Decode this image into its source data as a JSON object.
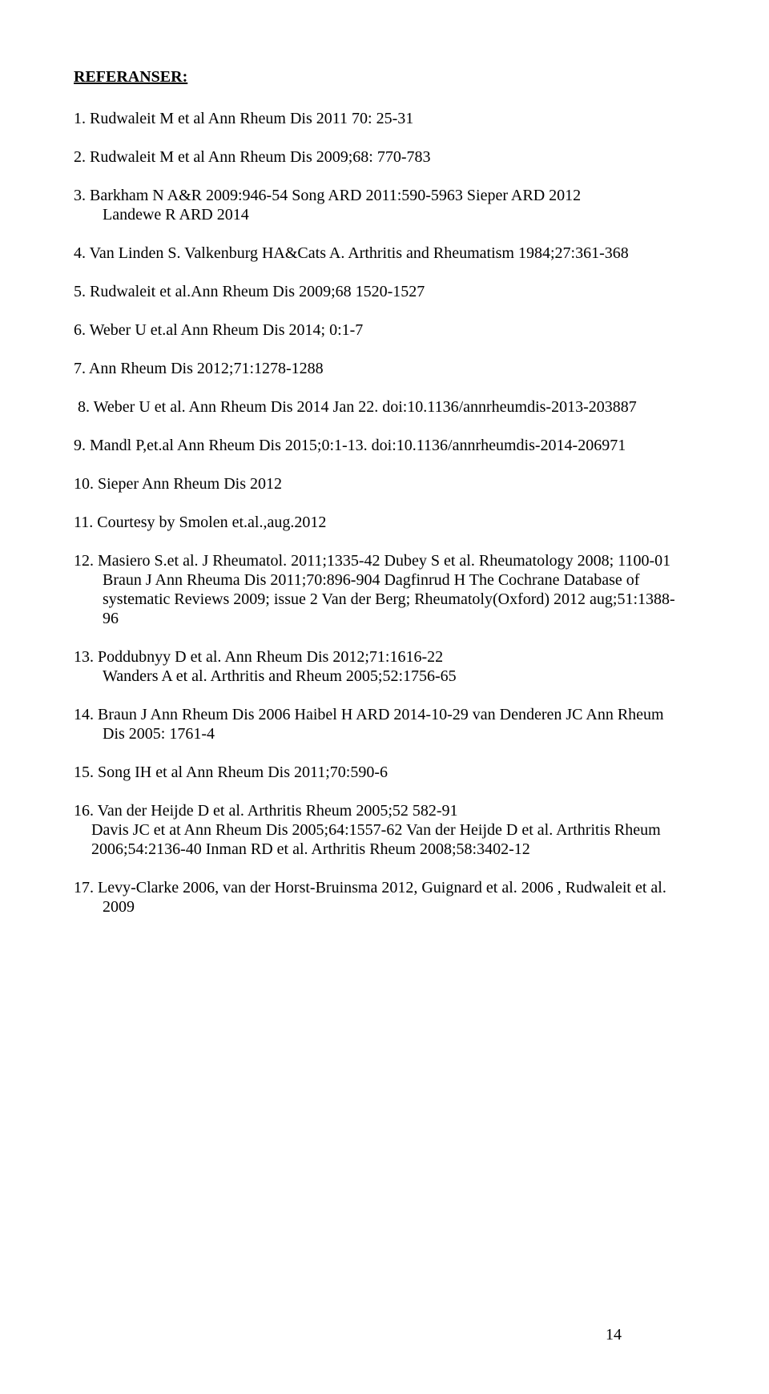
{
  "heading": "REFERANSER:",
  "refs": {
    "r1": "1. Rudwaleit M et al  Ann Rheum Dis 2011 70: 25-31",
    "r2": "2. Rudwaleit M et al Ann Rheum Dis 2009;68: 770-783",
    "r3a": "3. Barkham N A&R 2009:946-54   Song ARD 2011:590-5963  Sieper ARD 2012",
    "r3b": "Landewe R ARD 2014",
    "r4": "4. Van Linden S. Valkenburg HA&Cats A. Arthritis and Rheumatism 1984;27:361-368",
    "r5": "5. Rudwaleit et al.Ann Rheum Dis 2009;68 1520-1527",
    "r6": "6. Weber U et.al Ann Rheum Dis 2014; 0:1-7",
    "r7": "7. Ann Rheum Dis 2012;71:1278-1288",
    "r8": "8. Weber U  et al. Ann Rheum Dis 2014 Jan 22. doi:10.1136/annrheumdis-2013-203887",
    "r9": "9. Mandl P,et.al Ann Rheum Dis 2015;0:1-13. doi:10.1136/annrheumdis-2014-206971",
    "r10": "10. Sieper Ann Rheum Dis 2012",
    "r11": "11. Courtesy by Smolen et.al.,aug.2012",
    "r12a": "12. Masiero S.et al. J Rheumatol. 2011;1335-42  Dubey S et al. Rheumatology 2008; 1100-01",
    "r12b": "Braun J Ann Rheuma Dis 2011;70:896-904  Dagfinrud H The Cochrane Database of",
    "r12c": "systematic Reviews 2009; issue 2  Van der Berg; Rheumatoly(Oxford) 2012 aug;51:1388-",
    "r12d": "96",
    "r13a": "13. Poddubnyy D et al. Ann Rheum Dis 2012;71:1616-22",
    "r13b": "Wanders A et al. Arthritis and Rheum 2005;52:1756-65",
    "r14a": "14. Braun J Ann Rheum Dis 2006  Haibel H ARD 2014-10-29 van Denderen JC Ann Rheum",
    "r14b": "Dis 2005: 1761-4",
    "r15": "15. Song IH et al Ann Rheum Dis 2011;70:590-6",
    "r16a": "16. Van der Heijde D et al. Arthritis Rheum 2005;52 582-91",
    "r16b": "Davis JC et at Ann Rheum Dis 2005;64:1557-62  Van der Heijde D et al. Arthritis Rheum",
    "r16c": "2006;54:2136-40    Inman RD et al. Arthritis Rheum 2008;58:3402-12",
    "r17a": "17. Levy-Clarke 2006,  van der Horst-Bruinsma 2012, Guignard et al. 2006 , Rudwaleit et al.",
    "r17b": "2009"
  },
  "pagenum": "14"
}
